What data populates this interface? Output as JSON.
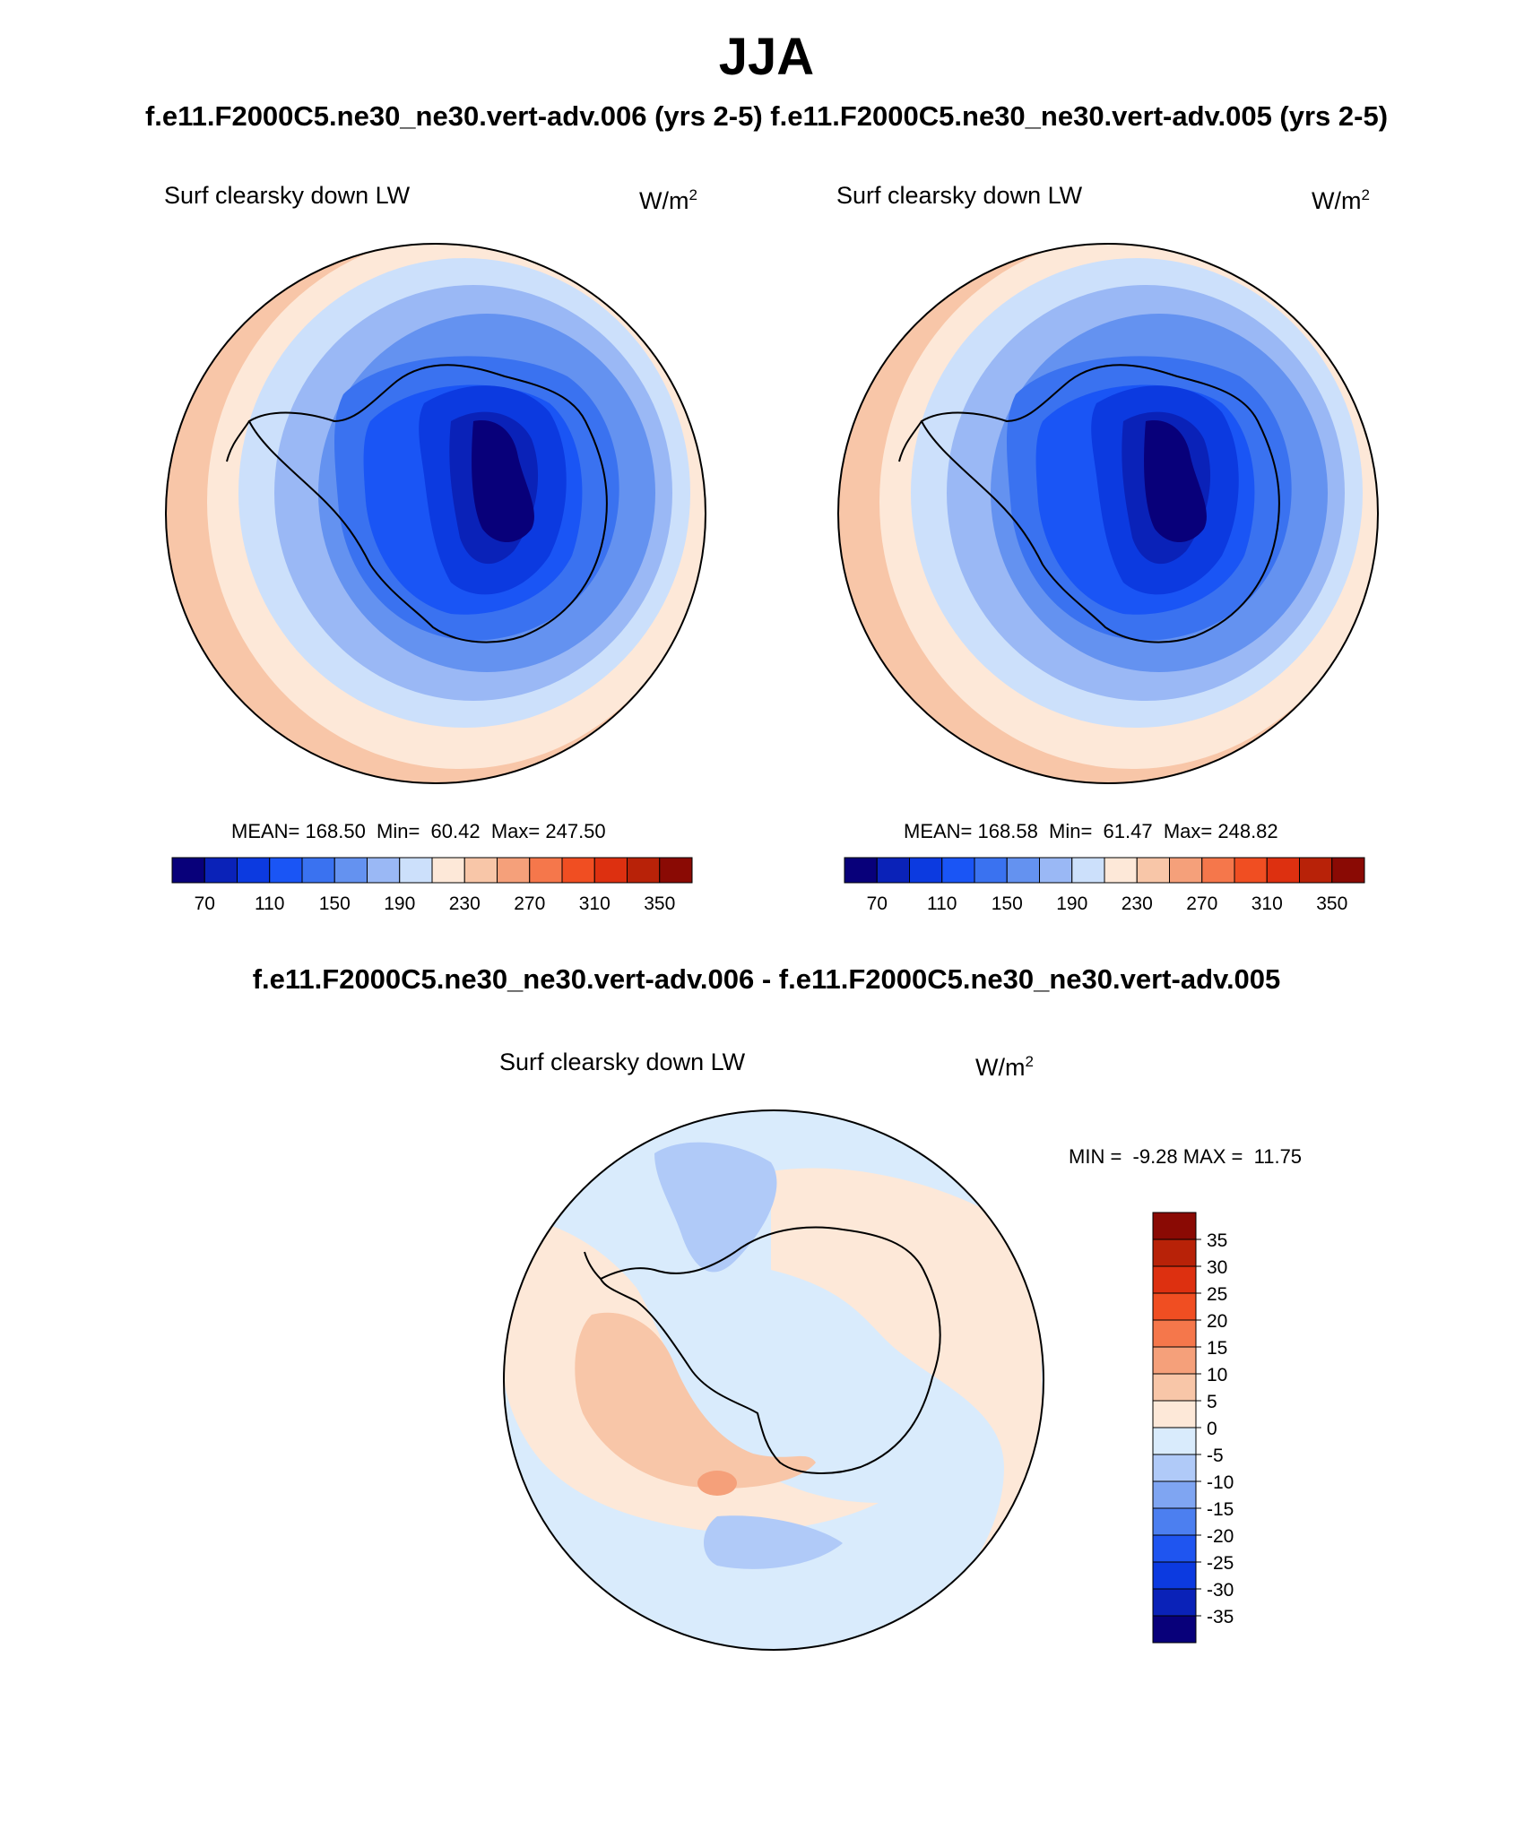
{
  "title": "JJA",
  "subtitle": "f.e11.F2000C5.ne30_ne30.vert-adv.006 (yrs 2-5)  f.e11.F2000C5.ne30_ne30.vert-adv.005 (yrs 2-5)",
  "panels": [
    {
      "label": "Surf clearsky down LW",
      "units_base": "W/m",
      "units_exp": "2",
      "stats": "MEAN= 168.50  Min=  60.42  Max= 247.50"
    },
    {
      "label": "Surf clearsky down LW",
      "units_base": "W/m",
      "units_exp": "2",
      "stats": "MEAN= 168.58  Min=  61.47  Max= 248.82"
    }
  ],
  "diff": {
    "title": "f.e11.F2000C5.ne30_ne30.vert-adv.006 - f.e11.F2000C5.ne30_ne30.vert-adv.005",
    "label": "Surf clearsky down LW",
    "units_base": "W/m",
    "units_exp": "2",
    "stats": "MIN =  -9.28 MAX =  11.75"
  },
  "colorbar_abs": {
    "colors": [
      "#08007a",
      "#0a22b8",
      "#0c3ae0",
      "#1a55f5",
      "#3a72f0",
      "#6492f0",
      "#9ab8f5",
      "#cce0fb",
      "#fde8d8",
      "#f8c6a8",
      "#f5a07a",
      "#f5774b",
      "#f04e22",
      "#dd3010",
      "#b82208",
      "#8a0a04"
    ],
    "tick_labels": [
      "70",
      "110",
      "150",
      "190",
      "230",
      "270",
      "310",
      "350"
    ]
  },
  "colorbar_diff": {
    "colors": [
      "#8a0a04",
      "#b82208",
      "#dd3010",
      "#f04e22",
      "#f5774b",
      "#f5a07a",
      "#f8c6a8",
      "#fde8d8",
      "#d9ebfc",
      "#b0caf8",
      "#7fa5f2",
      "#4c7ff0",
      "#1f55f0",
      "#0c3ae0",
      "#0a22b8",
      "#08007a"
    ],
    "tick_labels": [
      "35",
      "30",
      "25",
      "20",
      "15",
      "10",
      "5",
      "0",
      "-5",
      "-10",
      "-15",
      "-20",
      "-25",
      "-30",
      "-35"
    ]
  }
}
